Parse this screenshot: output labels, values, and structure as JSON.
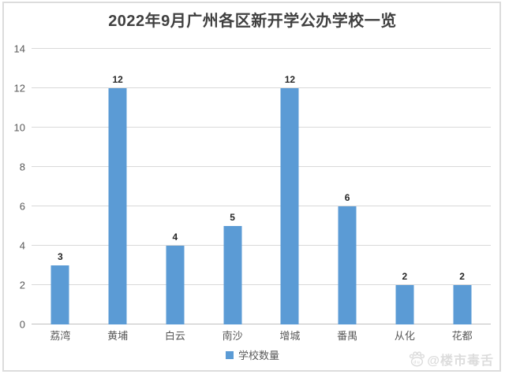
{
  "title": "2022年9月广州各区新开学公办学校一览",
  "legend": {
    "label": "学校数量"
  },
  "watermark": {
    "icon": "baidu-paw-icon",
    "text": "@楼市毒舌"
  },
  "colors": {
    "bar": "#5b9bd5",
    "title_text": "#404040",
    "axis_text": "#595959",
    "data_label_text": "#262626",
    "gridline": "#d9d9d9",
    "frame_border": "#dcdcdc",
    "watermark_text": "#dcdcdc"
  },
  "chart_data": {
    "type": "bar",
    "title": "2022年9月广州各区新开学公办学校一览",
    "categories": [
      "荔湾",
      "黄埔",
      "白云",
      "南沙",
      "增城",
      "番禺",
      "从化",
      "花都"
    ],
    "values": [
      3,
      12,
      4,
      5,
      12,
      6,
      2,
      2
    ],
    "series_name": "学校数量",
    "yticks": [
      0,
      2,
      4,
      6,
      8,
      10,
      12,
      14
    ],
    "ylim": [
      0,
      14
    ],
    "xlabel": "",
    "ylabel": "",
    "grid": true,
    "data_labels": true,
    "legend_position": "bottom"
  }
}
